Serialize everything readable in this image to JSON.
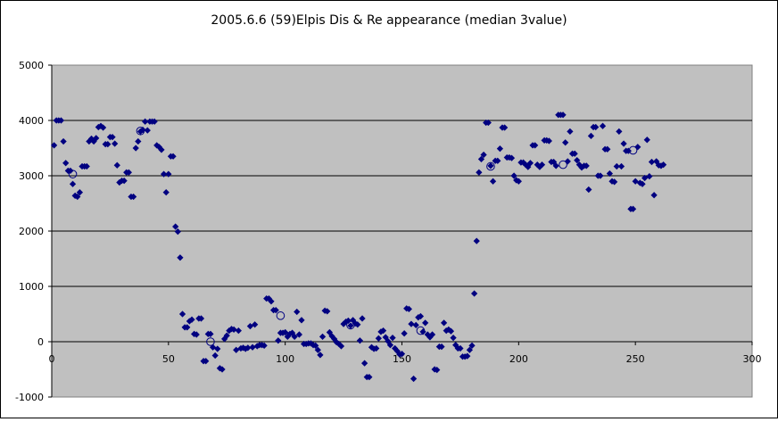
{
  "chart_data": {
    "type": "scatter",
    "title": "2005.6.6 (59)Elpis Dis & Re appearance (median 3value)",
    "xlabel": "",
    "ylabel": "",
    "xlim": [
      0,
      300
    ],
    "ylim": [
      -1000,
      5000
    ],
    "x_ticks": [
      0,
      50,
      100,
      150,
      200,
      250,
      300
    ],
    "y_ticks": [
      -1000,
      0,
      1000,
      2000,
      3000,
      4000,
      5000
    ],
    "grid": "horizontal",
    "legend": "none",
    "colors": {
      "plot_background": "#c0c0c0",
      "marker": "#000080",
      "grid": "#000000"
    },
    "series": [
      {
        "marker": "diamond",
        "points": [
          [
            1,
            3550
          ],
          [
            2,
            4000
          ],
          [
            3,
            4000
          ],
          [
            4,
            4000
          ],
          [
            5,
            3620
          ],
          [
            6,
            3230
          ],
          [
            7,
            3090
          ],
          [
            8,
            3090
          ],
          [
            9,
            2850
          ],
          [
            10,
            2640
          ],
          [
            11,
            2620
          ],
          [
            12,
            2700
          ],
          [
            13,
            3170
          ],
          [
            14,
            3170
          ],
          [
            15,
            3170
          ],
          [
            16,
            3620
          ],
          [
            17,
            3670
          ],
          [
            18,
            3620
          ],
          [
            19,
            3680
          ],
          [
            20,
            3880
          ],
          [
            21,
            3900
          ],
          [
            22,
            3870
          ],
          [
            23,
            3570
          ],
          [
            24,
            3570
          ],
          [
            25,
            3700
          ],
          [
            26,
            3700
          ],
          [
            27,
            3580
          ],
          [
            28,
            3190
          ],
          [
            29,
            2880
          ],
          [
            30,
            2910
          ],
          [
            31,
            2910
          ],
          [
            32,
            3060
          ],
          [
            33,
            3060
          ],
          [
            34,
            2620
          ],
          [
            35,
            2620
          ],
          [
            36,
            3500
          ],
          [
            37,
            3620
          ],
          [
            38,
            3800
          ],
          [
            39,
            3830
          ],
          [
            40,
            3980
          ],
          [
            41,
            3820
          ],
          [
            42,
            3980
          ],
          [
            43,
            3980
          ],
          [
            44,
            3980
          ],
          [
            45,
            3550
          ],
          [
            46,
            3520
          ],
          [
            47,
            3470
          ],
          [
            48,
            3030
          ],
          [
            49,
            2700
          ],
          [
            50,
            3030
          ],
          [
            51,
            3350
          ],
          [
            52,
            3350
          ],
          [
            53,
            2080
          ],
          [
            54,
            1990
          ],
          [
            55,
            1520
          ],
          [
            56,
            500
          ],
          [
            57,
            260
          ],
          [
            58,
            260
          ],
          [
            59,
            370
          ],
          [
            60,
            400
          ],
          [
            61,
            140
          ],
          [
            62,
            130
          ],
          [
            63,
            420
          ],
          [
            64,
            420
          ],
          [
            65,
            -350
          ],
          [
            66,
            -350
          ],
          [
            67,
            140
          ],
          [
            68,
            140
          ],
          [
            69,
            -100
          ],
          [
            70,
            -250
          ],
          [
            71,
            -130
          ],
          [
            72,
            -480
          ],
          [
            73,
            -500
          ],
          [
            74,
            50
          ],
          [
            75,
            110
          ],
          [
            76,
            200
          ],
          [
            77,
            230
          ],
          [
            78,
            220
          ],
          [
            79,
            -150
          ],
          [
            80,
            200
          ],
          [
            81,
            -120
          ],
          [
            82,
            -110
          ],
          [
            83,
            -130
          ],
          [
            84,
            -110
          ],
          [
            85,
            280
          ],
          [
            86,
            -100
          ],
          [
            87,
            310
          ],
          [
            88,
            -80
          ],
          [
            89,
            -60
          ],
          [
            90,
            -60
          ],
          [
            91,
            -70
          ],
          [
            92,
            780
          ],
          [
            93,
            780
          ],
          [
            94,
            730
          ],
          [
            95,
            570
          ],
          [
            96,
            570
          ],
          [
            97,
            20
          ],
          [
            98,
            160
          ],
          [
            99,
            160
          ],
          [
            100,
            170
          ],
          [
            101,
            90
          ],
          [
            102,
            140
          ],
          [
            103,
            160
          ],
          [
            104,
            90
          ],
          [
            105,
            540
          ],
          [
            106,
            130
          ],
          [
            107,
            390
          ],
          [
            108,
            -40
          ],
          [
            109,
            -40
          ],
          [
            110,
            -30
          ],
          [
            111,
            -30
          ],
          [
            112,
            -60
          ],
          [
            113,
            -70
          ],
          [
            114,
            -150
          ],
          [
            115,
            -240
          ],
          [
            116,
            90
          ],
          [
            117,
            560
          ],
          [
            118,
            550
          ],
          [
            119,
            170
          ],
          [
            120,
            100
          ],
          [
            121,
            50
          ],
          [
            122,
            -10
          ],
          [
            123,
            -40
          ],
          [
            124,
            -80
          ],
          [
            125,
            320
          ],
          [
            126,
            360
          ],
          [
            127,
            380
          ],
          [
            128,
            290
          ],
          [
            129,
            390
          ],
          [
            130,
            330
          ],
          [
            131,
            310
          ],
          [
            132,
            20
          ],
          [
            133,
            420
          ],
          [
            134,
            -390
          ],
          [
            135,
            -640
          ],
          [
            136,
            -640
          ],
          [
            137,
            -100
          ],
          [
            138,
            -130
          ],
          [
            139,
            -120
          ],
          [
            140,
            60
          ],
          [
            141,
            180
          ],
          [
            142,
            200
          ],
          [
            143,
            80
          ],
          [
            144,
            10
          ],
          [
            145,
            -60
          ],
          [
            146,
            70
          ],
          [
            147,
            -120
          ],
          [
            148,
            -170
          ],
          [
            149,
            -230
          ],
          [
            150,
            -220
          ],
          [
            151,
            150
          ],
          [
            152,
            600
          ],
          [
            153,
            590
          ],
          [
            154,
            320
          ],
          [
            155,
            -670
          ],
          [
            156,
            300
          ],
          [
            157,
            440
          ],
          [
            158,
            460
          ],
          [
            159,
            180
          ],
          [
            160,
            340
          ],
          [
            161,
            130
          ],
          [
            162,
            80
          ],
          [
            163,
            130
          ],
          [
            164,
            -500
          ],
          [
            165,
            -510
          ],
          [
            166,
            -90
          ],
          [
            167,
            -90
          ],
          [
            168,
            340
          ],
          [
            169,
            200
          ],
          [
            170,
            220
          ],
          [
            171,
            190
          ],
          [
            172,
            70
          ],
          [
            173,
            -60
          ],
          [
            174,
            -120
          ],
          [
            175,
            -120
          ],
          [
            176,
            -270
          ],
          [
            177,
            -270
          ],
          [
            178,
            -260
          ],
          [
            179,
            -150
          ],
          [
            180,
            -70
          ],
          [
            181,
            870
          ],
          [
            182,
            1820
          ],
          [
            183,
            3060
          ],
          [
            184,
            3300
          ],
          [
            185,
            3380
          ],
          [
            186,
            3960
          ],
          [
            187,
            3960
          ],
          [
            188,
            3180
          ],
          [
            189,
            2900
          ],
          [
            190,
            3270
          ],
          [
            191,
            3270
          ],
          [
            192,
            3490
          ],
          [
            193,
            3870
          ],
          [
            194,
            3870
          ],
          [
            195,
            3330
          ],
          [
            196,
            3330
          ],
          [
            197,
            3320
          ],
          [
            198,
            3000
          ],
          [
            199,
            2920
          ],
          [
            200,
            2900
          ],
          [
            201,
            3240
          ],
          [
            202,
            3240
          ],
          [
            203,
            3200
          ],
          [
            204,
            3160
          ],
          [
            205,
            3230
          ],
          [
            206,
            3550
          ],
          [
            207,
            3550
          ],
          [
            208,
            3200
          ],
          [
            209,
            3160
          ],
          [
            210,
            3200
          ],
          [
            211,
            3640
          ],
          [
            212,
            3640
          ],
          [
            213,
            3630
          ],
          [
            214,
            3250
          ],
          [
            215,
            3250
          ],
          [
            216,
            3180
          ],
          [
            217,
            4100
          ],
          [
            218,
            4100
          ],
          [
            219,
            4100
          ],
          [
            220,
            3600
          ],
          [
            221,
            3260
          ],
          [
            222,
            3800
          ],
          [
            223,
            3400
          ],
          [
            224,
            3400
          ],
          [
            225,
            3280
          ],
          [
            226,
            3200
          ],
          [
            227,
            3150
          ],
          [
            228,
            3180
          ],
          [
            229,
            3180
          ],
          [
            230,
            2750
          ],
          [
            231,
            3720
          ],
          [
            232,
            3880
          ],
          [
            233,
            3880
          ],
          [
            234,
            3000
          ],
          [
            235,
            3000
          ],
          [
            236,
            3900
          ],
          [
            237,
            3480
          ],
          [
            238,
            3480
          ],
          [
            239,
            3040
          ],
          [
            240,
            2900
          ],
          [
            241,
            2890
          ],
          [
            242,
            3170
          ],
          [
            243,
            3800
          ],
          [
            244,
            3170
          ],
          [
            245,
            3580
          ],
          [
            246,
            3450
          ],
          [
            247,
            3450
          ],
          [
            248,
            2400
          ],
          [
            249,
            2400
          ],
          [
            250,
            2900
          ],
          [
            251,
            3520
          ],
          [
            252,
            2870
          ],
          [
            253,
            2850
          ],
          [
            254,
            2960
          ],
          [
            255,
            3650
          ],
          [
            256,
            2990
          ],
          [
            257,
            3250
          ],
          [
            258,
            2650
          ],
          [
            259,
            3260
          ],
          [
            260,
            3190
          ],
          [
            261,
            3180
          ],
          [
            262,
            3200
          ]
        ]
      },
      {
        "marker": "open-circle",
        "points": [
          [
            9,
            3030
          ],
          [
            38,
            3810
          ],
          [
            68,
            0
          ],
          [
            98,
            470
          ],
          [
            128,
            300
          ],
          [
            158,
            200
          ],
          [
            188,
            3170
          ],
          [
            219,
            3200
          ],
          [
            249,
            3460
          ]
        ]
      }
    ]
  }
}
